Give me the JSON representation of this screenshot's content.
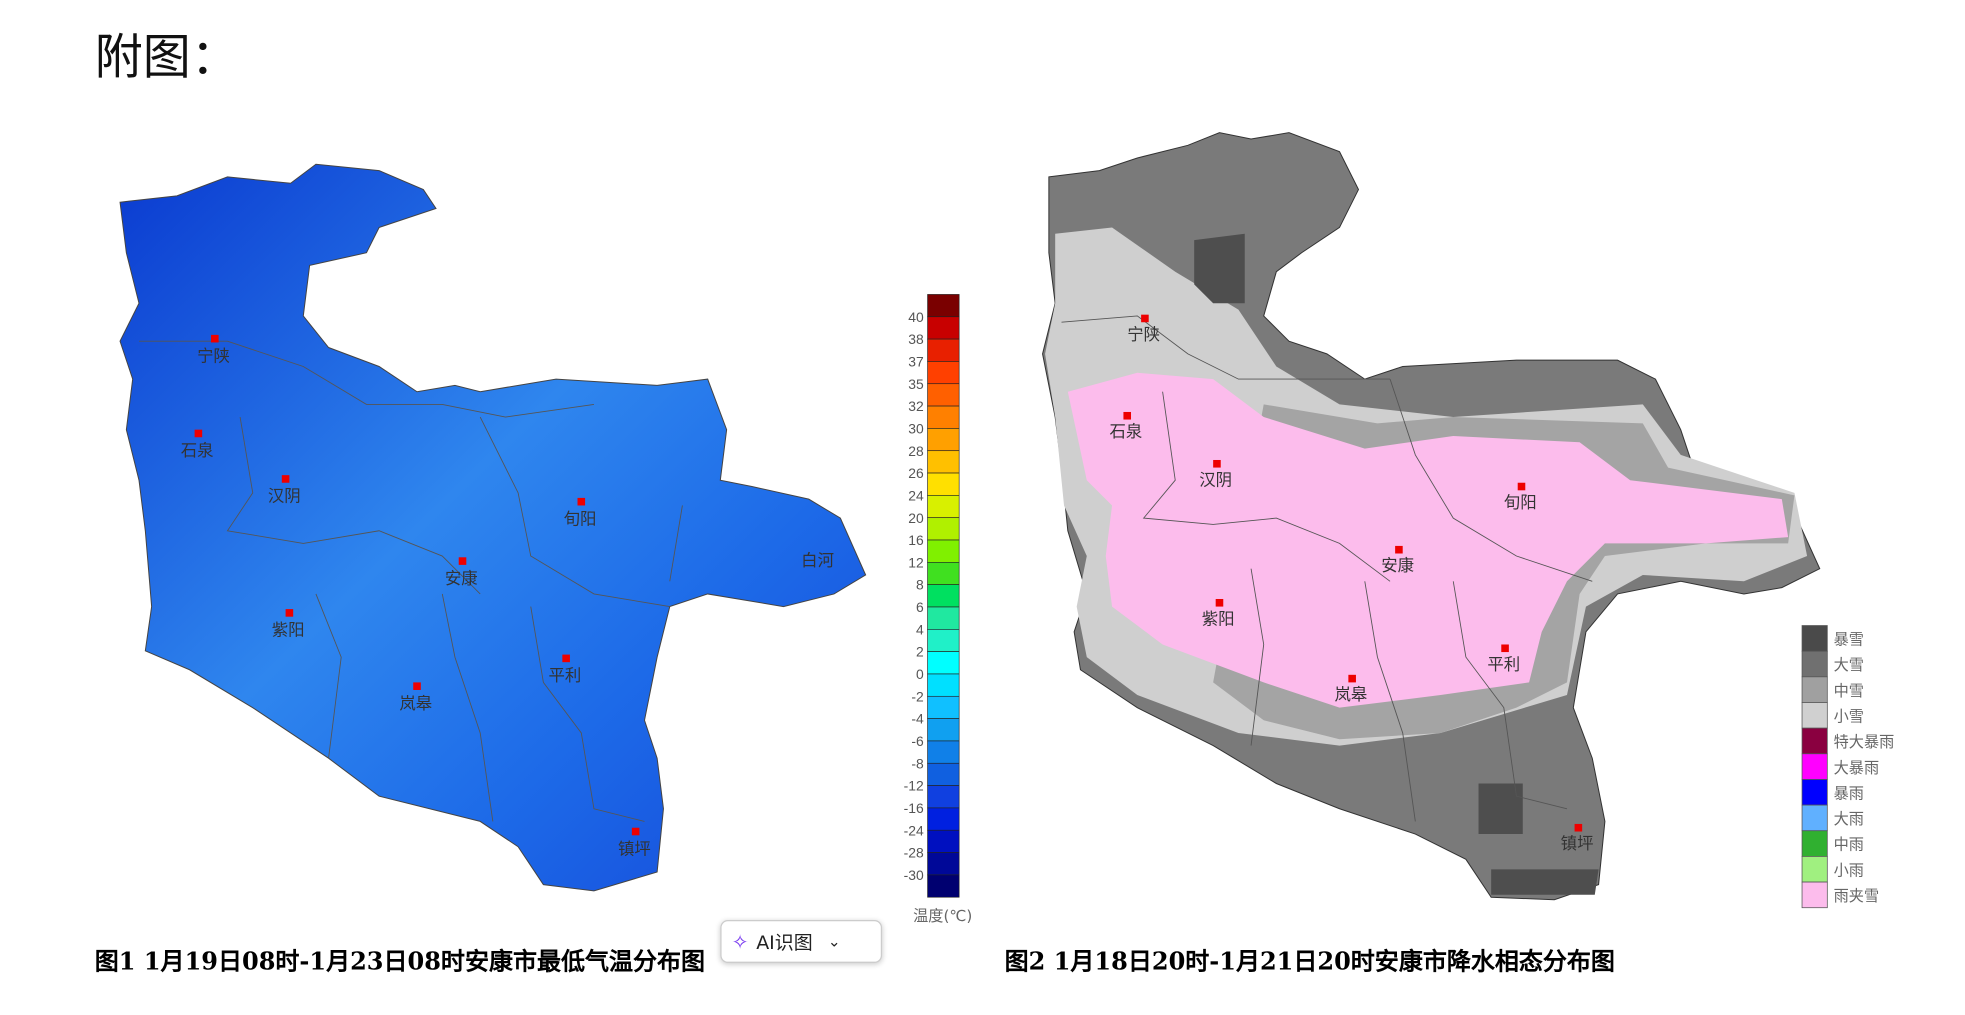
{
  "heading": "附图：",
  "figure1": {
    "caption": "图1  1月19日08时-1月23日08时安康市最低气温分布图",
    "cities": [
      "宁陕",
      "石泉",
      "汉阴",
      "旬阳",
      "白河",
      "安康",
      "紫阳",
      "平利",
      "岚皋",
      "镇坪"
    ],
    "colorbar": {
      "unit_label": "温度(℃)",
      "ticks": [
        "40",
        "38",
        "37",
        "35",
        "32",
        "30",
        "28",
        "26",
        "24",
        "20",
        "16",
        "12",
        "8",
        "6",
        "4",
        "2",
        "0",
        "-2",
        "-4",
        "-6",
        "-8",
        "-12",
        "-16",
        "-24",
        "-28",
        "-30"
      ],
      "colors": [
        "#7a0000",
        "#c80000",
        "#e82000",
        "#ff4000",
        "#ff6000",
        "#ff8000",
        "#ffa000",
        "#ffc000",
        "#ffe000",
        "#d8f000",
        "#b0f000",
        "#80f000",
        "#40e020",
        "#00e060",
        "#20e8a0",
        "#20f0c8",
        "#00ffff",
        "#00e0ff",
        "#10c0ff",
        "#10a0f0",
        "#1080e8",
        "#1060e0",
        "#1040e0",
        "#0020e0",
        "#0010c0",
        "#000898",
        "#000070"
      ]
    },
    "colors": {
      "primary_fill": "#1a5ee8",
      "light_fill": "#2f8af0",
      "dark_fill": "#0a3ad0"
    }
  },
  "figure2": {
    "caption": "图2  1月18日20时-1月21日20时安康市降水相态分布图",
    "cities": [
      "宁陕",
      "石泉",
      "汉阴",
      "旬阳",
      "安康",
      "紫阳",
      "平利",
      "岚皋",
      "镇坪"
    ],
    "legend": [
      {
        "label": "暴雪",
        "color": "#4a4a4a"
      },
      {
        "label": "大雪",
        "color": "#707070"
      },
      {
        "label": "中雪",
        "color": "#a0a0a0"
      },
      {
        "label": "小雪",
        "color": "#d0d0d0"
      },
      {
        "label": "特大暴雨",
        "color": "#8a0040"
      },
      {
        "label": "大暴雨",
        "color": "#ff00ff"
      },
      {
        "label": "暴雨",
        "color": "#0000ff"
      },
      {
        "label": "大雨",
        "color": "#60b0ff"
      },
      {
        "label": "中雨",
        "color": "#30b030"
      },
      {
        "label": "小雨",
        "color": "#a0f080"
      },
      {
        "label": "雨夹雪",
        "color": "#fcbcec"
      }
    ]
  },
  "ai_button": {
    "label": "AI识图",
    "icon": "sparkle-icon"
  }
}
